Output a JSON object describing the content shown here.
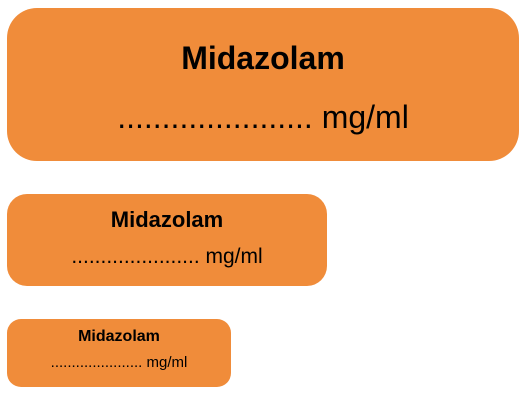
{
  "labels": [
    {
      "drug": "Midazolam",
      "concentration": "...................... mg/ml"
    },
    {
      "drug": "Midazolam",
      "concentration": "...................... mg/ml"
    },
    {
      "drug": "Midazolam",
      "concentration": "...................... mg/ml"
    }
  ],
  "colors": {
    "label_background": "#f08c3a",
    "text": "#000000"
  }
}
